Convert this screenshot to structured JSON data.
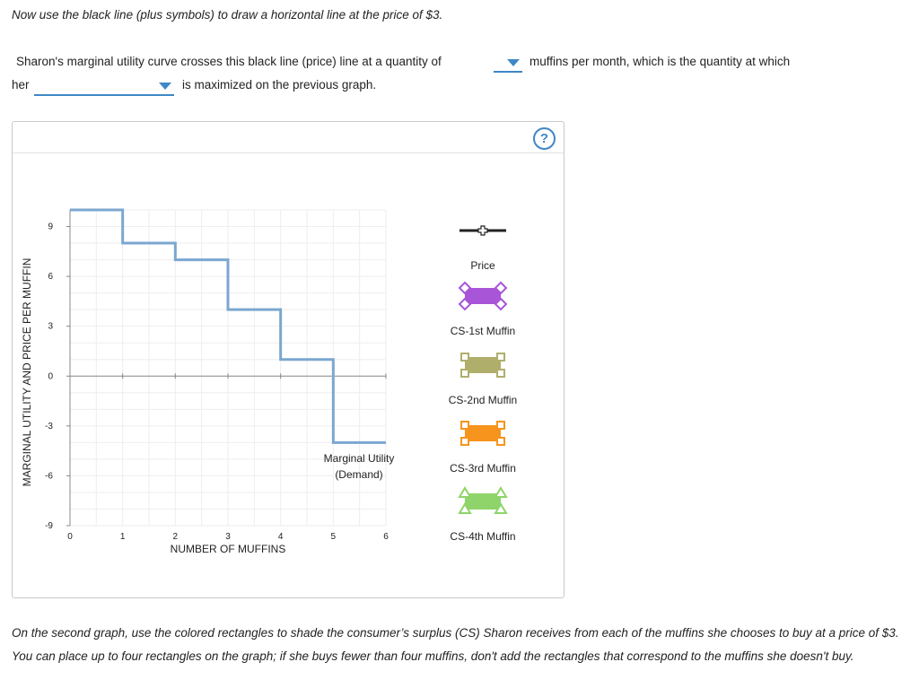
{
  "instructions": {
    "top": "Now use the black line (plus symbols) to draw a horizontal line at the price of $3.",
    "bottom": "On the second graph, use the colored rectangles to shade the consumer’s surplus (CS) Sharon receives from each of the muffins she chooses to buy at a price of $3. You can place up to four rectangles on the graph; if she buys fewer than four muffins, don't add the rectangles that correspond to the muffins she doesn't buy."
  },
  "question": {
    "part1": "Sharon's marginal utility curve crosses this black line (price) line at a quantity of",
    "part2": "muffins per month, which is the quantity at which",
    "part3": "her",
    "part4": "is maximized on the previous graph.",
    "dropdown1_value": "",
    "dropdown2_value": ""
  },
  "help_label": "?",
  "chart_data": {
    "type": "line",
    "xlabel": "NUMBER OF MUFFINS",
    "ylabel": "MARGINAL UTILITY AND PRICE PER MUFFIN",
    "xlim": [
      0,
      6
    ],
    "ylim": [
      -9,
      10
    ],
    "xticks": [
      0,
      1,
      2,
      3,
      4,
      5,
      6
    ],
    "yticks": [
      9,
      6,
      3,
      0,
      -3,
      -6,
      -9
    ],
    "grid": true,
    "series": [
      {
        "name": "Marginal Utility (Demand)",
        "label_line1": "Marginal Utility",
        "label_line2": "(Demand)",
        "color": "#7ba7d0",
        "steps": [
          {
            "x0": 0,
            "x1": 1,
            "y": 10
          },
          {
            "x0": 1,
            "x1": 2,
            "y": 8
          },
          {
            "x0": 2,
            "x1": 3,
            "y": 7
          },
          {
            "x0": 3,
            "x1": 4,
            "y": 4
          },
          {
            "x0": 4,
            "x1": 5,
            "y": 1
          },
          {
            "x0": 5,
            "x1": 6,
            "y": -4
          }
        ]
      }
    ]
  },
  "legend": [
    {
      "label": "Price",
      "color": "#222222",
      "kind": "line-plus"
    },
    {
      "label": "CS-1st Muffin",
      "color": "#a855d8",
      "kind": "diamond-rect"
    },
    {
      "label": "CS-2nd Muffin",
      "color": "#b0ae6b",
      "kind": "square-rect"
    },
    {
      "label": "CS-3rd Muffin",
      "color": "#f7941d",
      "kind": "square-rect"
    },
    {
      "label": "CS-4th Muffin",
      "color": "#8ed46a",
      "kind": "triangle-rect"
    }
  ]
}
